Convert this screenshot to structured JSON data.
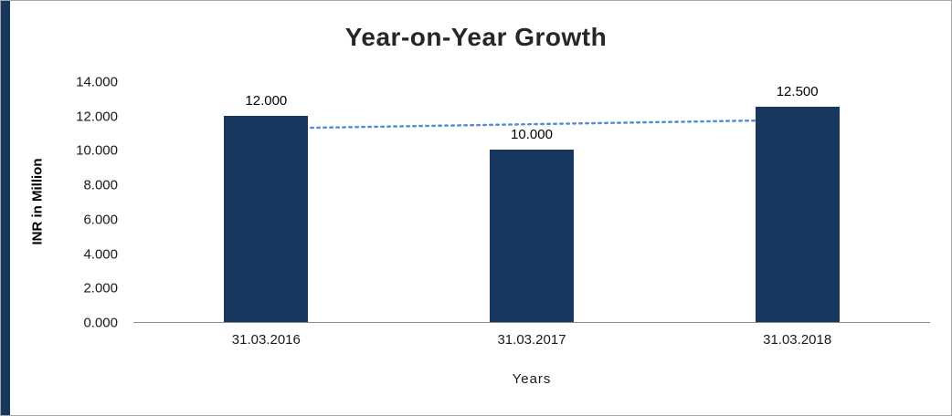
{
  "window": {
    "left_stripe_color": "#17375E",
    "border_color": "#a6a6a6",
    "background": "#ffffff"
  },
  "chart_data": {
    "type": "bar",
    "title": "Year-on-Year Growth",
    "xlabel": "Years",
    "ylabel": "INR in Million",
    "categories": [
      "31.03.2016",
      "31.03.2017",
      "31.03.2018"
    ],
    "values": [
      12.0,
      10.0,
      12.5
    ],
    "data_labels": [
      "12.000",
      "10.000",
      "12.500"
    ],
    "ylim": [
      0,
      14
    ],
    "ytick_step": 2,
    "ytick_labels": [
      "0.000",
      "2.000",
      "4.000",
      "6.000",
      "8.000",
      "10.000",
      "12.000",
      "14.000"
    ],
    "grid": false,
    "legend": "none",
    "bar_color": "#17375E",
    "axis_color": "#8e8e8e",
    "trendline": {
      "type": "linear",
      "style": "dotted",
      "color": "#538DD5",
      "start_value": 11.25,
      "end_value": 11.75
    }
  }
}
